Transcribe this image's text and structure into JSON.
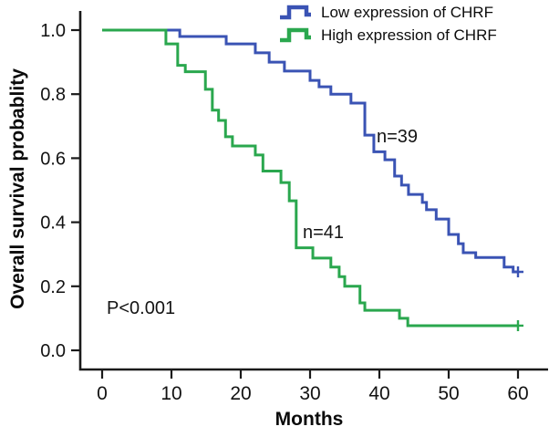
{
  "chart_data": {
    "type": "line",
    "subtype": "kaplan-meier-step-curves",
    "title": "",
    "xlabel": "Months",
    "ylabel": "Overall survival probablity",
    "xlim": [
      0,
      60
    ],
    "ylim": [
      0.0,
      1.0
    ],
    "xticks": [
      0,
      10,
      20,
      30,
      40,
      50,
      60
    ],
    "yticks": [
      1.0,
      0.8,
      0.6,
      0.4,
      0.2,
      0.0
    ],
    "grid": false,
    "legend_position": "top-right",
    "axis_color": "#1a1a1a",
    "series": [
      {
        "name": "Low expression of CHRF",
        "color": "#3a53b4",
        "n_label": "n=39",
        "censor_at_end": true,
        "steps": [
          [
            0,
            1.0
          ],
          [
            11.2,
            0.98
          ],
          [
            17.9,
            0.957
          ],
          [
            22.1,
            0.929
          ],
          [
            24.1,
            0.9
          ],
          [
            26.3,
            0.872
          ],
          [
            30.0,
            0.843
          ],
          [
            31.3,
            0.823
          ],
          [
            33.0,
            0.8
          ],
          [
            35.9,
            0.772
          ],
          [
            37.9,
            0.672
          ],
          [
            39.2,
            0.62
          ],
          [
            40.8,
            0.595
          ],
          [
            42.2,
            0.544
          ],
          [
            43.2,
            0.516
          ],
          [
            44.2,
            0.487
          ],
          [
            46.2,
            0.462
          ],
          [
            46.8,
            0.439
          ],
          [
            48.2,
            0.41
          ],
          [
            50.0,
            0.362
          ],
          [
            51.4,
            0.333
          ],
          [
            52.1,
            0.305
          ],
          [
            53.9,
            0.29
          ],
          [
            58.0,
            0.26
          ],
          [
            59.3,
            0.245
          ]
        ]
      },
      {
        "name": "High expression of CHRF",
        "color": "#2aa74e",
        "n_label": "n=41",
        "censor_at_end": true,
        "steps": [
          [
            0,
            1.0
          ],
          [
            9.2,
            0.957
          ],
          [
            10.9,
            0.89
          ],
          [
            12.0,
            0.87
          ],
          [
            14.9,
            0.815
          ],
          [
            15.9,
            0.75
          ],
          [
            16.8,
            0.718
          ],
          [
            17.8,
            0.667
          ],
          [
            18.8,
            0.638
          ],
          [
            22.1,
            0.61
          ],
          [
            23.2,
            0.56
          ],
          [
            25.8,
            0.524
          ],
          [
            27.0,
            0.467
          ],
          [
            28.0,
            0.32
          ],
          [
            30.4,
            0.288
          ],
          [
            33.0,
            0.26
          ],
          [
            34.2,
            0.23
          ],
          [
            35.0,
            0.2
          ],
          [
            37.2,
            0.148
          ],
          [
            37.9,
            0.125
          ],
          [
            42.9,
            0.1
          ],
          [
            44.1,
            0.077
          ]
        ]
      }
    ],
    "annotations": [
      {
        "text": "n=39"
      },
      {
        "text": "n=41"
      },
      {
        "text": "P<0.001"
      }
    ]
  }
}
